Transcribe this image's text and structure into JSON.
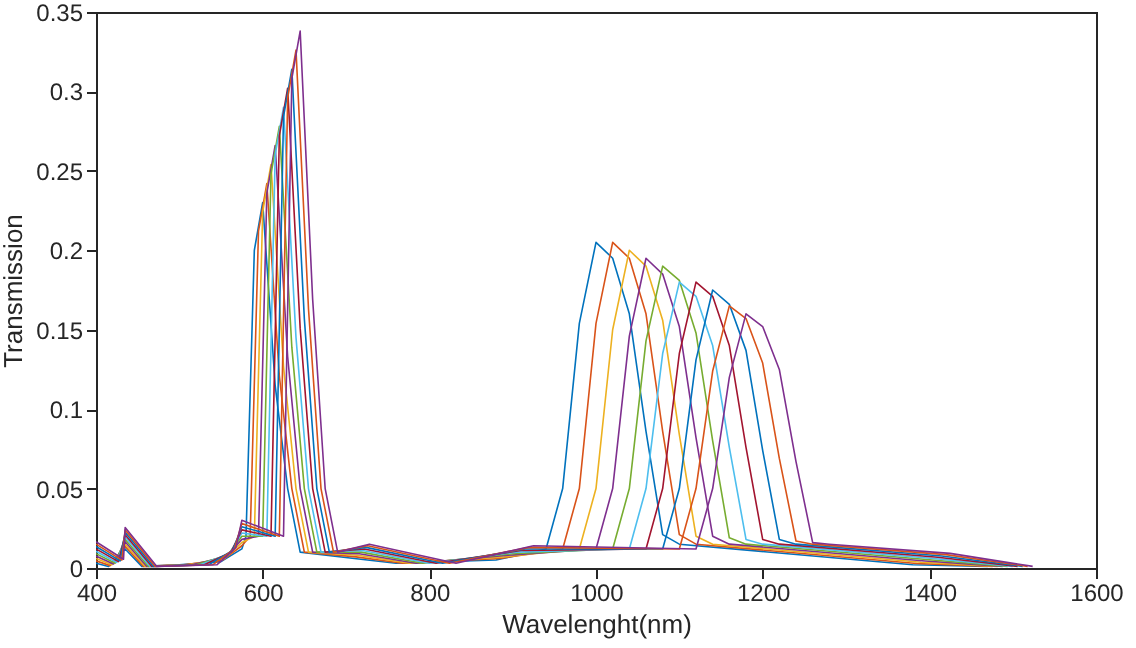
{
  "chart_data": {
    "type": "line",
    "xlabel": "Wavelenght(nm)",
    "ylabel": "Transmission",
    "xlim": [
      400,
      1600
    ],
    "ylim": [
      0,
      0.35
    ],
    "xticks": [
      400,
      600,
      800,
      1000,
      1200,
      1400,
      1600
    ],
    "yticks": [
      0,
      0.05,
      0.1,
      0.15,
      0.2,
      0.25,
      0.3,
      0.35
    ],
    "series": [
      {
        "color": "#0072bd",
        "x": [
          400,
          415,
          435,
          455,
          500,
          550,
          575,
          580,
          590,
          600,
          615,
          630,
          645,
          710,
          760,
          880,
          940,
          960,
          980,
          1000,
          1020,
          1040,
          1060,
          1080,
          1100,
          1380,
          1470
        ],
        "values": [
          0.003,
          0.001,
          0.012,
          0.001,
          0.002,
          0.004,
          0.012,
          0.02,
          0.2,
          0.23,
          0.115,
          0.05,
          0.01,
          0.006,
          0.003,
          0.005,
          0.012,
          0.05,
          0.154,
          0.205,
          0.195,
          0.16,
          0.086,
          0.021,
          0.015,
          0.002,
          0.001
        ]
      },
      {
        "color": "#d95319",
        "x": [
          400,
          417,
          435,
          457,
          505,
          552,
          575,
          585,
          595,
          605,
          620,
          635,
          650,
          712,
          768,
          885,
          960,
          980,
          1000,
          1020,
          1040,
          1060,
          1080,
          1100,
          1120,
          1385,
          1476
        ],
        "values": [
          0.0045,
          0.0015,
          0.0135,
          0.001,
          0.002,
          0.005,
          0.014,
          0.02,
          0.212,
          0.242,
          0.121,
          0.05,
          0.01,
          0.007,
          0.003,
          0.006,
          0.012,
          0.05,
          0.154,
          0.205,
          0.195,
          0.16,
          0.086,
          0.021,
          0.015,
          0.0028,
          0.001
        ]
      },
      {
        "color": "#edb120",
        "x": [
          400,
          419,
          435,
          459,
          510,
          554,
          575,
          590,
          600,
          610,
          625,
          640,
          655,
          714,
          776,
          890,
          980,
          1000,
          1020,
          1040,
          1060,
          1080,
          1100,
          1120,
          1140,
          1390,
          1482
        ],
        "values": [
          0.006,
          0.002,
          0.015,
          0.001,
          0.002,
          0.006,
          0.016,
          0.02,
          0.224,
          0.254,
          0.127,
          0.05,
          0.01,
          0.008,
          0.003,
          0.007,
          0.012,
          0.05,
          0.15,
          0.2,
          0.19,
          0.156,
          0.084,
          0.02,
          0.015,
          0.0036,
          0.001
        ]
      },
      {
        "color": "#7e2f8e",
        "x": [
          400,
          421,
          435,
          461,
          515,
          556,
          575,
          595,
          605,
          615,
          630,
          645,
          660,
          716,
          784,
          895,
          1000,
          1020,
          1040,
          1060,
          1080,
          1100,
          1120,
          1140,
          1160,
          1395,
          1488
        ],
        "values": [
          0.0075,
          0.0025,
          0.0165,
          0.001,
          0.002,
          0.007,
          0.018,
          0.02,
          0.236,
          0.266,
          0.133,
          0.05,
          0.01,
          0.009,
          0.003,
          0.008,
          0.012,
          0.05,
          0.146,
          0.195,
          0.185,
          0.152,
          0.082,
          0.02,
          0.015,
          0.0044,
          0.001
        ]
      },
      {
        "color": "#77ac30",
        "x": [
          400,
          423,
          435,
          463,
          520,
          558,
          575,
          600,
          610,
          620,
          635,
          650,
          665,
          718,
          792,
          900,
          1020,
          1040,
          1060,
          1080,
          1100,
          1120,
          1140,
          1160,
          1180,
          1400,
          1494
        ],
        "values": [
          0.009,
          0.003,
          0.018,
          0.001,
          0.002,
          0.008,
          0.02,
          0.02,
          0.248,
          0.278,
          0.139,
          0.05,
          0.01,
          0.01,
          0.003,
          0.009,
          0.012,
          0.05,
          0.143,
          0.19,
          0.181,
          0.148,
          0.08,
          0.019,
          0.015,
          0.0052,
          0.001
        ]
      },
      {
        "color": "#4dbeee",
        "x": [
          400,
          425,
          435,
          465,
          525,
          560,
          575,
          605,
          615,
          625,
          640,
          655,
          670,
          720,
          800,
          905,
          1040,
          1060,
          1080,
          1100,
          1120,
          1140,
          1160,
          1180,
          1200,
          1405,
          1500
        ],
        "values": [
          0.0105,
          0.0035,
          0.0195,
          0.001,
          0.002,
          0.009,
          0.022,
          0.02,
          0.26,
          0.29,
          0.145,
          0.05,
          0.01,
          0.011,
          0.003,
          0.01,
          0.012,
          0.05,
          0.135,
          0.18,
          0.171,
          0.14,
          0.076,
          0.018,
          0.015,
          0.006,
          0.001
        ]
      },
      {
        "color": "#a2142f",
        "x": [
          400,
          427,
          435,
          467,
          530,
          562,
          575,
          610,
          620,
          630,
          645,
          660,
          675,
          722,
          808,
          910,
          1060,
          1080,
          1100,
          1120,
          1140,
          1160,
          1180,
          1200,
          1220,
          1410,
          1506
        ],
        "values": [
          0.012,
          0.004,
          0.021,
          0.001,
          0.002,
          0.01,
          0.024,
          0.02,
          0.272,
          0.302,
          0.151,
          0.05,
          0.01,
          0.012,
          0.003,
          0.011,
          0.012,
          0.05,
          0.135,
          0.18,
          0.171,
          0.14,
          0.076,
          0.018,
          0.015,
          0.0068,
          0.001
        ]
      },
      {
        "color": "#0072bd",
        "x": [
          400,
          429,
          435,
          469,
          535,
          564,
          575,
          615,
          625,
          635,
          650,
          665,
          680,
          724,
          816,
          915,
          1080,
          1100,
          1120,
          1140,
          1160,
          1180,
          1200,
          1220,
          1240,
          1415,
          1512
        ],
        "values": [
          0.0135,
          0.0045,
          0.0225,
          0.001,
          0.002,
          0.011,
          0.026,
          0.02,
          0.284,
          0.314,
          0.157,
          0.05,
          0.01,
          0.013,
          0.003,
          0.012,
          0.012,
          0.05,
          0.131,
          0.175,
          0.166,
          0.137,
          0.074,
          0.018,
          0.015,
          0.0076,
          0.001
        ]
      },
      {
        "color": "#d95319",
        "x": [
          400,
          431,
          435,
          471,
          540,
          566,
          575,
          620,
          630,
          640,
          655,
          670,
          685,
          726,
          824,
          920,
          1100,
          1120,
          1140,
          1160,
          1180,
          1200,
          1220,
          1240,
          1260,
          1420,
          1518
        ],
        "values": [
          0.015,
          0.005,
          0.024,
          0.001,
          0.002,
          0.012,
          0.028,
          0.02,
          0.296,
          0.326,
          0.163,
          0.05,
          0.01,
          0.014,
          0.003,
          0.013,
          0.012,
          0.05,
          0.124,
          0.165,
          0.157,
          0.129,
          0.069,
          0.017,
          0.015,
          0.0084,
          0.001
        ]
      },
      {
        "color": "#7e2f8e",
        "x": [
          400,
          433,
          435,
          473,
          545,
          568,
          575,
          625,
          635,
          645,
          660,
          675,
          690,
          728,
          832,
          925,
          1120,
          1140,
          1160,
          1180,
          1200,
          1220,
          1240,
          1260,
          1280,
          1425,
          1524
        ],
        "values": [
          0.0165,
          0.0055,
          0.0255,
          0.001,
          0.002,
          0.013,
          0.03,
          0.02,
          0.308,
          0.338,
          0.169,
          0.05,
          0.01,
          0.015,
          0.003,
          0.014,
          0.012,
          0.05,
          0.12,
          0.16,
          0.152,
          0.125,
          0.067,
          0.016,
          0.015,
          0.0092,
          0.001
        ]
      }
    ]
  }
}
